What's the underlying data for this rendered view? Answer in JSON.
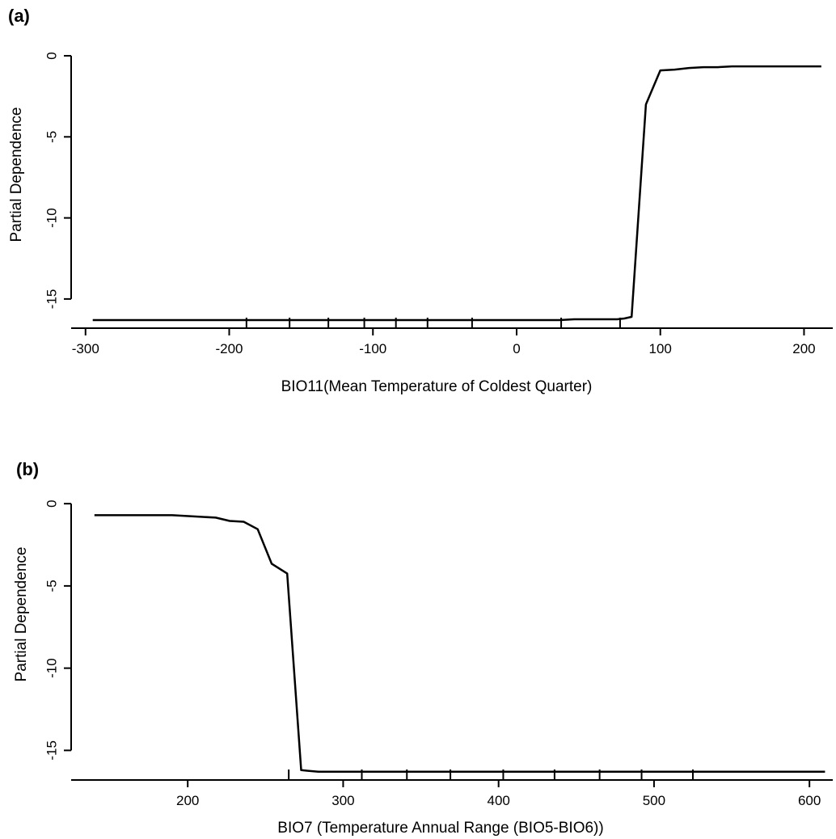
{
  "chart_data": [
    {
      "type": "line",
      "panel_label": "(a)",
      "xlabel": "BIO11(Mean Temperature of Coldest Quarter)",
      "ylabel": "Partial Dependence",
      "xlim": [
        -310,
        220
      ],
      "ylim": [
        -16.8,
        0.4
      ],
      "xticks": [
        -300,
        -200,
        -100,
        0,
        100,
        200
      ],
      "yticks": [
        0,
        -5,
        -10,
        -15
      ],
      "series": [
        {
          "x": [
            -295,
            -200,
            -100,
            0,
            30,
            40,
            60,
            70,
            75,
            80,
            90,
            100,
            110,
            120,
            130,
            140,
            150,
            160,
            180,
            200,
            212
          ],
          "values": [
            -16.3,
            -16.3,
            -16.3,
            -16.3,
            -16.3,
            -16.25,
            -16.25,
            -16.25,
            -16.2,
            -16.1,
            -3.0,
            -0.9,
            -0.85,
            -0.75,
            -0.7,
            -0.7,
            -0.65,
            -0.65,
            -0.65,
            -0.65,
            -0.65
          ]
        }
      ],
      "rug": [
        -188,
        -158,
        -131,
        -106,
        -84,
        -62,
        -31,
        31,
        72
      ]
    },
    {
      "type": "line",
      "panel_label": "(b)",
      "xlabel": "BIO7 (Temperature Annual Range (BIO5-BIO6))",
      "ylabel": "Partial Dependence",
      "xlim": [
        125,
        615
      ],
      "ylim": [
        -16.8,
        0.4
      ],
      "xticks": [
        200,
        300,
        400,
        500,
        600
      ],
      "yticks": [
        0,
        -5,
        -10,
        -15
      ],
      "series": [
        {
          "x": [
            140,
            190,
            218,
            227,
            236,
            245,
            254,
            264,
            273,
            284,
            300,
            400,
            500,
            610
          ],
          "values": [
            -0.7,
            -0.7,
            -0.85,
            -1.05,
            -1.1,
            -1.55,
            -3.65,
            -4.25,
            -16.2,
            -16.3,
            -16.3,
            -16.3,
            -16.3,
            -16.3
          ]
        }
      ],
      "rug": [
        265,
        312,
        341,
        369,
        403,
        436,
        465,
        492,
        525
      ]
    }
  ]
}
